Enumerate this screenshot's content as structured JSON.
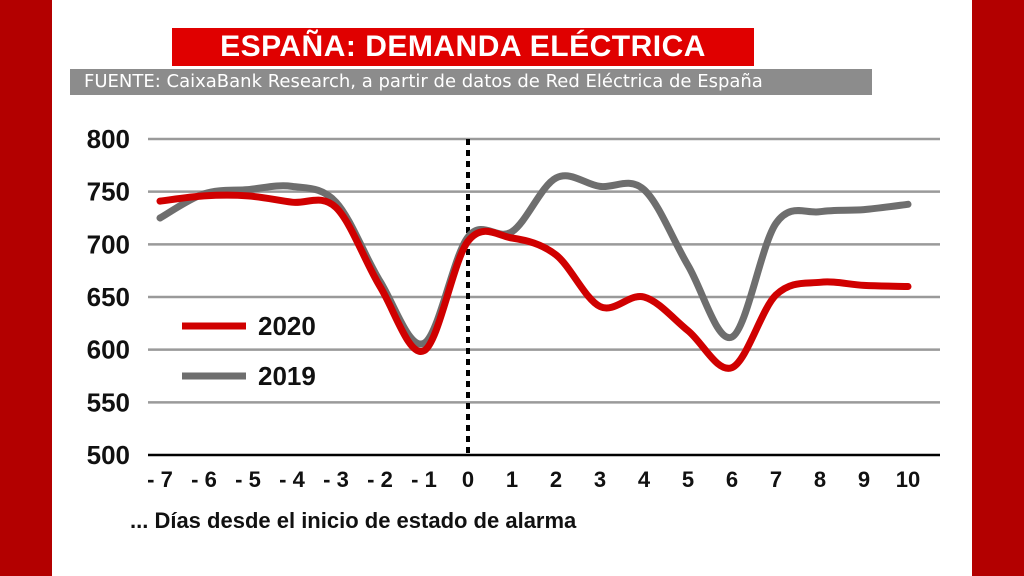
{
  "header": {
    "title": "ESPAÑA: DEMANDA ELÉCTRICA",
    "source": "FUENTE: CaixaBank Research, a partir de datos de Red Eléctrica de España"
  },
  "colors": {
    "frame": "#b30000",
    "title_bg": "#e00000",
    "source_bg": "#8c8c8c",
    "grid": "#9a9a9a",
    "series_2020": "#d00000",
    "series_2019": "#6e6e6e"
  },
  "chart_data": {
    "type": "line",
    "xlabel": "... Días desde el inicio de estado de alarma",
    "x": [
      -7,
      -6,
      -5,
      -4,
      -3,
      -2,
      -1,
      0,
      1,
      2,
      3,
      4,
      5,
      6,
      7,
      8,
      9,
      10
    ],
    "x_tick_labels": [
      "- 7",
      "- 6",
      "- 5",
      "- 4",
      "- 3",
      "- 2",
      "- 1",
      "0",
      "1",
      "2",
      "3",
      "4",
      "5",
      "6",
      "7",
      "8",
      "9",
      "10"
    ],
    "ylim": [
      500,
      800
    ],
    "y_ticks": [
      500,
      550,
      600,
      650,
      700,
      750,
      800
    ],
    "grid": true,
    "vertical_marker_x": 0,
    "legend_position": "left, middle",
    "series": [
      {
        "name": "2020",
        "values": [
          741,
          746,
          746,
          740,
          735,
          660,
          599,
          703,
          706,
          690,
          641,
          650,
          618,
          583,
          652,
          664,
          661,
          660
        ]
      },
      {
        "name": "2019",
        "values": [
          725,
          748,
          752,
          755,
          740,
          665,
          606,
          707,
          712,
          763,
          755,
          752,
          680,
          612,
          720,
          731,
          733,
          738
        ]
      }
    ]
  }
}
